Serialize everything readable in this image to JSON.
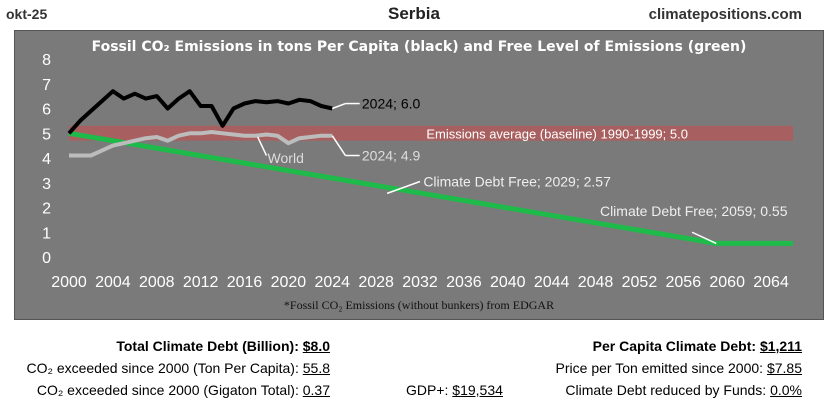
{
  "header": {
    "date": "okt-25",
    "country": "Serbia",
    "site": "climatepositions.com"
  },
  "chart_data": {
    "type": "line",
    "title": "Fossil CO₂ Emissions in tons Per Capita (black) and Free Level of Emissions (green)",
    "footnote": "*Fossil CO₂ Emissions (without bunkers) from EDGAR",
    "xlim": [
      2000,
      2066
    ],
    "ylim": [
      0,
      8
    ],
    "xticks": [
      2000,
      2004,
      2008,
      2012,
      2016,
      2020,
      2024,
      2028,
      2032,
      2036,
      2040,
      2044,
      2048,
      2052,
      2056,
      2060,
      2064
    ],
    "yticks": [
      0,
      1,
      2,
      3,
      4,
      5,
      6,
      7,
      8
    ],
    "baseline": {
      "value": 5.0,
      "label": "Emissions average (baseline) 1990-1999; 5.0",
      "color": "#b05a5a"
    },
    "series": [
      {
        "name": "Serbia",
        "color": "#000000",
        "x": [
          2000,
          2001,
          2002,
          2003,
          2004,
          2005,
          2006,
          2007,
          2008,
          2009,
          2010,
          2011,
          2012,
          2013,
          2014,
          2015,
          2016,
          2017,
          2018,
          2019,
          2020,
          2021,
          2022,
          2023,
          2024
        ],
        "values": [
          5.0,
          5.5,
          5.9,
          6.3,
          6.7,
          6.4,
          6.6,
          6.4,
          6.5,
          6.0,
          6.4,
          6.7,
          6.1,
          6.1,
          5.3,
          6.0,
          6.2,
          6.3,
          6.25,
          6.3,
          6.2,
          6.35,
          6.3,
          6.1,
          6.0
        ],
        "end_label": "2024; 6.0"
      },
      {
        "name": "World",
        "color": "#bcbcbc",
        "x": [
          2000,
          2001,
          2002,
          2003,
          2004,
          2005,
          2006,
          2007,
          2008,
          2009,
          2010,
          2011,
          2012,
          2013,
          2014,
          2015,
          2016,
          2017,
          2018,
          2019,
          2020,
          2021,
          2022,
          2023,
          2024
        ],
        "values": [
          4.1,
          4.1,
          4.1,
          4.3,
          4.5,
          4.6,
          4.7,
          4.8,
          4.85,
          4.7,
          4.9,
          5.0,
          5.0,
          5.05,
          5.0,
          4.95,
          4.9,
          4.9,
          4.95,
          4.9,
          4.6,
          4.8,
          4.85,
          4.9,
          4.9
        ],
        "label": "World",
        "end_label": "2024; 4.9"
      },
      {
        "name": "Free Level of Emissions",
        "color": "#1fbb4a",
        "x": [
          2000,
          2059,
          2066
        ],
        "values": [
          5.0,
          0.55,
          0.55
        ]
      }
    ],
    "annotations": [
      {
        "text": "Climate Debt Free; 2029; 2.57"
      },
      {
        "text": "Climate Debt Free; 2059; 0.55"
      }
    ]
  },
  "stats": {
    "total_debt_label": "Total Climate Debt (Billion):",
    "total_debt_value": "$8.0",
    "co2_ton_label": "CO₂ exceeded since 2000 (Ton Per Capita):",
    "co2_ton_value": "55.8",
    "co2_gt_label": "CO₂ exceeded since 2000 (Gigaton Total):",
    "co2_gt_value": "0.37",
    "gdp_label": "GDP+:",
    "gdp_value": "$19,534",
    "per_capita_label": "Per Capita Climate Debt:",
    "per_capita_value": "$1,211",
    "price_label": "Price per Ton emitted since 2000:",
    "price_value": "$7.85",
    "reduced_label": "Climate Debt reduced by Funds:",
    "reduced_value": "0.0%"
  }
}
